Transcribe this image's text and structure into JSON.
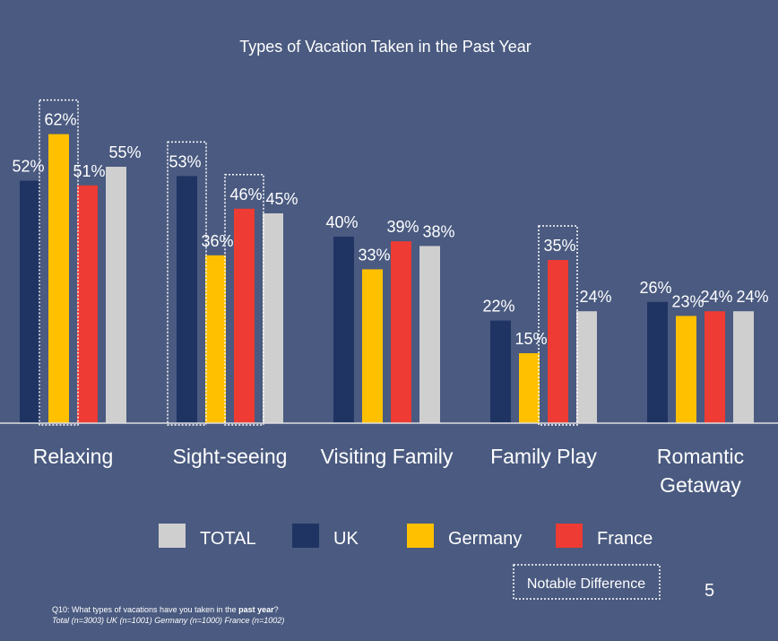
{
  "chart_data": {
    "type": "bar",
    "title": "Types of Vacation Taken in the Past Year",
    "categories": [
      [
        "Relaxing"
      ],
      [
        "Sight-seeing"
      ],
      [
        "Visiting Family"
      ],
      [
        "Family Play"
      ],
      [
        "Romantic",
        "Getaway"
      ]
    ],
    "series": [
      {
        "name": "UK",
        "color": "#1f3462",
        "values": [
          52,
          53,
          40,
          22,
          26
        ]
      },
      {
        "name": "Germany",
        "color": "#ffc000",
        "values": [
          62,
          36,
          33,
          15,
          23
        ]
      },
      {
        "name": "France",
        "color": "#ee3b33",
        "values": [
          51,
          46,
          39,
          35,
          24
        ]
      },
      {
        "name": "TOTAL",
        "color": "#cfcfcf",
        "values": [
          55,
          45,
          38,
          24,
          24
        ]
      }
    ],
    "value_suffix": "%",
    "ylim": [
      0,
      70
    ],
    "legend": [
      "TOTAL",
      "UK",
      "Germany",
      "France"
    ],
    "highlights": [
      {
        "category": 0,
        "series": "Germany"
      },
      {
        "category": 1,
        "series": "UK"
      },
      {
        "category": 1,
        "series": "France"
      },
      {
        "category": 3,
        "series": "France"
      }
    ],
    "highlight_label": "Notable Difference"
  },
  "footnote": {
    "question_prefix": "Q10: What types of vacations have you taken in the ",
    "question_bold": "past year",
    "question_suffix": "?",
    "sample": "Total (n=3003) UK (n=1001) Germany (n=1000) France (n=1002)"
  },
  "page_number": "5"
}
